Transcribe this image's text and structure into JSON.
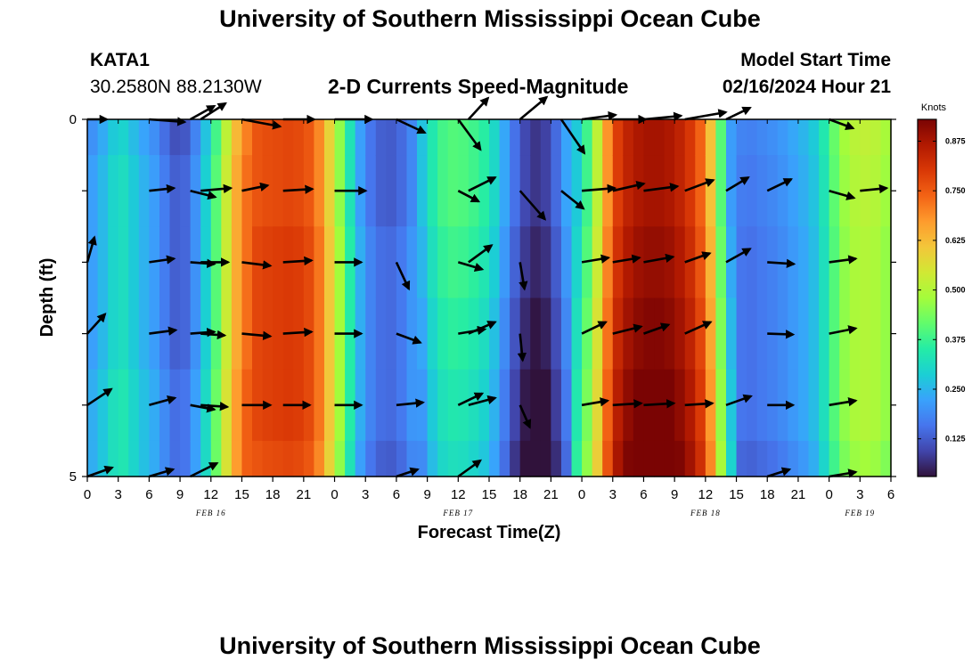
{
  "title": "University of Southern Mississippi Ocean Cube",
  "station": {
    "id": "KATA1",
    "coords": "30.2580N  88.2130W"
  },
  "subtitle": "2-D Currents Speed-Magnitude",
  "model_start": {
    "label": "Model Start Time",
    "value": "02/16/2024 Hour 21"
  },
  "footer_title": "University of Southern Mississippi Ocean Cube",
  "colors": {
    "cmap": [
      "#30123b",
      "#4145ab",
      "#4675ed",
      "#39a2fc",
      "#1bcfd4",
      "#24eca6",
      "#61fc6c",
      "#a4fc3b",
      "#d1e834",
      "#f3c63a",
      "#fe9b2d",
      "#f36315",
      "#d93806",
      "#b11901",
      "#7a0403"
    ]
  },
  "chart_data": {
    "type": "heatmap",
    "title": "2-D Currents Speed-Magnitude",
    "xlabel": "Forecast Time(Z)",
    "ylabel": "Depth (ft)",
    "x_start_hour": 0,
    "x_hours": 78,
    "x_tick_step_hours": 3,
    "x_tick_labels": [
      "0",
      "3",
      "6",
      "9",
      "12",
      "15",
      "18",
      "21",
      "0",
      "3",
      "6",
      "9",
      "12",
      "15",
      "18",
      "21",
      "0",
      "3",
      "6",
      "9",
      "12",
      "15",
      "18",
      "21",
      "0",
      "3",
      "6"
    ],
    "date_labels": [
      {
        "label": "FEB 16",
        "hour": 12
      },
      {
        "label": "FEB 17",
        "hour": 36
      },
      {
        "label": "FEB 18",
        "hour": 60
      },
      {
        "label": "FEB 19",
        "hour": 75
      }
    ],
    "ylim": [
      0,
      5
    ],
    "y_tick_labels": [
      {
        "value": 0,
        "label": "0"
      },
      {
        "value": 5,
        "label": "5"
      }
    ],
    "depths": [
      0,
      1,
      2,
      3,
      4,
      5
    ],
    "colorbar": {
      "unit": "Knots",
      "min": 0.03,
      "max": 0.93,
      "ticks": [
        "0.125",
        "0.250",
        "0.375",
        "0.500",
        "0.625",
        "0.750",
        "0.875"
      ]
    },
    "speed_profile": [
      [
        0,
        0.2
      ],
      [
        1,
        0.24
      ],
      [
        2,
        0.27
      ],
      [
        3,
        0.33
      ],
      [
        4,
        0.3
      ],
      [
        5,
        0.26
      ],
      [
        6,
        0.23
      ],
      [
        7,
        0.2
      ],
      [
        8,
        0.14
      ],
      [
        9,
        0.12
      ],
      [
        10,
        0.16
      ],
      [
        11,
        0.24
      ],
      [
        12,
        0.34
      ],
      [
        13,
        0.47
      ],
      [
        14,
        0.6
      ],
      [
        15,
        0.7
      ],
      [
        16,
        0.75
      ],
      [
        17,
        0.77
      ],
      [
        18,
        0.77
      ],
      [
        19,
        0.78
      ],
      [
        20,
        0.78
      ],
      [
        21,
        0.77
      ],
      [
        22,
        0.74
      ],
      [
        23,
        0.65
      ],
      [
        24,
        0.52
      ],
      [
        25,
        0.4
      ],
      [
        26,
        0.26
      ],
      [
        27,
        0.18
      ],
      [
        28,
        0.14
      ],
      [
        29,
        0.12
      ],
      [
        30,
        0.13
      ],
      [
        31,
        0.16
      ],
      [
        32,
        0.21
      ],
      [
        33,
        0.29
      ],
      [
        34,
        0.35
      ],
      [
        35,
        0.38
      ],
      [
        36,
        0.38
      ],
      [
        37,
        0.37
      ],
      [
        38,
        0.35
      ],
      [
        39,
        0.32
      ],
      [
        40,
        0.25
      ],
      [
        41,
        0.17
      ],
      [
        42,
        0.1
      ],
      [
        43,
        0.06
      ],
      [
        44,
        0.05
      ],
      [
        45,
        0.09
      ],
      [
        46,
        0.16
      ],
      [
        47,
        0.25
      ],
      [
        48,
        0.35
      ],
      [
        49,
        0.45
      ],
      [
        50,
        0.62
      ],
      [
        51,
        0.78
      ],
      [
        52,
        0.85
      ],
      [
        53,
        0.88
      ],
      [
        54,
        0.9
      ],
      [
        55,
        0.9
      ],
      [
        56,
        0.9
      ],
      [
        57,
        0.88
      ],
      [
        58,
        0.85
      ],
      [
        59,
        0.8
      ],
      [
        60,
        0.72
      ],
      [
        61,
        0.55
      ],
      [
        62,
        0.3
      ],
      [
        63,
        0.17
      ],
      [
        64,
        0.15
      ],
      [
        65,
        0.16
      ],
      [
        66,
        0.17
      ],
      [
        67,
        0.18
      ],
      [
        68,
        0.2
      ],
      [
        69,
        0.22
      ],
      [
        70,
        0.24
      ],
      [
        71,
        0.28
      ],
      [
        72,
        0.36
      ],
      [
        73,
        0.44
      ],
      [
        74,
        0.48
      ],
      [
        75,
        0.5
      ],
      [
        76,
        0.5
      ],
      [
        77,
        0.48
      ],
      [
        78,
        0.45
      ]
    ],
    "depth_mod": [
      [
        -0.02,
        0.0,
        0.0,
        0.0,
        0.02,
        0.02
      ],
      [
        0.0,
        0.0,
        0.02,
        0.02,
        0.02,
        0.0
      ],
      [
        0.02,
        0.02,
        0.0,
        -0.02,
        -0.04,
        -0.06
      ],
      [
        -0.02,
        -0.02,
        0.0,
        0.02,
        0.04,
        0.06
      ],
      [
        0.02,
        0.01,
        0.0,
        0.0,
        0.0,
        -0.02
      ]
    ],
    "vector_times": [
      0,
      6,
      10,
      11,
      15,
      19,
      24,
      30,
      36,
      37,
      42,
      46,
      48,
      51,
      54,
      58,
      62,
      66,
      72,
      75
    ],
    "vectors": [
      [
        [
          22,
          0
        ],
        [
          40,
          3
        ],
        [
          27,
          -15
        ],
        [
          28,
          -18
        ],
        [
          43,
          8
        ],
        [
          35,
          0
        ],
        [
          42,
          0
        ],
        [
          32,
          15
        ],
        [
          25,
          34
        ],
        [
          22,
          -24
        ],
        [
          30,
          -25
        ],
        [
          26,
          38
        ],
        [
          38,
          -5
        ],
        [
          37,
          0
        ],
        [
          42,
          -4
        ],
        [
          46,
          -8
        ],
        [
          27,
          -13
        ],
        [
          0,
          0
        ],
        [
          27,
          10
        ],
        [
          0,
          0
        ]
      ],
      [
        [
          0,
          0
        ],
        [
          28,
          -3
        ],
        [
          28,
          7
        ],
        [
          34,
          -3
        ],
        [
          29,
          -6
        ],
        [
          33,
          -2
        ],
        [
          35,
          0
        ],
        [
          0,
          0
        ],
        [
          23,
          12
        ],
        [
          30,
          -15
        ],
        [
          28,
          32
        ],
        [
          25,
          20
        ],
        [
          37,
          -3
        ],
        [
          35,
          -8
        ],
        [
          38,
          -5
        ],
        [
          32,
          -12
        ],
        [
          25,
          -15
        ],
        [
          27,
          -13
        ],
        [
          28,
          8
        ],
        [
          30,
          -3
        ]
      ],
      [
        [
          8,
          -28
        ],
        [
          28,
          -4
        ],
        [
          27,
          2
        ],
        [
          31,
          0
        ],
        [
          32,
          4
        ],
        [
          32,
          -2
        ],
        [
          30,
          0
        ],
        [
          14,
          30
        ],
        [
          27,
          8
        ],
        [
          26,
          -19
        ],
        [
          5,
          30
        ],
        [
          0,
          0
        ],
        [
          30,
          -5
        ],
        [
          30,
          -5
        ],
        [
          33,
          -6
        ],
        [
          28,
          -10
        ],
        [
          27,
          -15
        ],
        [
          30,
          2
        ],
        [
          30,
          -4
        ],
        [
          0,
          0
        ]
      ],
      [
        [
          20,
          -22
        ],
        [
          30,
          -4
        ],
        [
          27,
          -2
        ],
        [
          27,
          2
        ],
        [
          32,
          3
        ],
        [
          32,
          -2
        ],
        [
          30,
          0
        ],
        [
          27,
          10
        ],
        [
          30,
          -5
        ],
        [
          30,
          -13
        ],
        [
          3,
          30
        ],
        [
          0,
          0
        ],
        [
          27,
          -13
        ],
        [
          32,
          -8
        ],
        [
          28,
          -10
        ],
        [
          29,
          -13
        ],
        [
          0,
          0
        ],
        [
          29,
          1
        ],
        [
          30,
          -6
        ],
        [
          0,
          0
        ]
      ],
      [
        [
          27,
          -18
        ],
        [
          29,
          -8
        ],
        [
          27,
          5
        ],
        [
          30,
          2
        ],
        [
          32,
          0
        ],
        [
          30,
          0
        ],
        [
          30,
          0
        ],
        [
          30,
          -3
        ],
        [
          27,
          -13
        ],
        [
          30,
          -8
        ],
        [
          11,
          25
        ],
        [
          0,
          0
        ],
        [
          29,
          -5
        ],
        [
          32,
          -2
        ],
        [
          34,
          -2
        ],
        [
          31,
          -2
        ],
        [
          28,
          -10
        ],
        [
          29,
          0
        ],
        [
          30,
          -5
        ],
        [
          0,
          0
        ]
      ],
      [
        [
          28,
          -10
        ],
        [
          27,
          -8
        ],
        [
          30,
          -15
        ],
        [
          0,
          0
        ],
        [
          0,
          0
        ],
        [
          0,
          0
        ],
        [
          0,
          0
        ],
        [
          24,
          -8
        ],
        [
          25,
          -18
        ],
        [
          0,
          0
        ],
        [
          0,
          0
        ],
        [
          0,
          0
        ],
        [
          0,
          0
        ],
        [
          0,
          0
        ],
        [
          0,
          0
        ],
        [
          0,
          0
        ],
        [
          0,
          0
        ],
        [
          25,
          -8
        ],
        [
          30,
          -5
        ],
        [
          0,
          0
        ]
      ]
    ]
  }
}
